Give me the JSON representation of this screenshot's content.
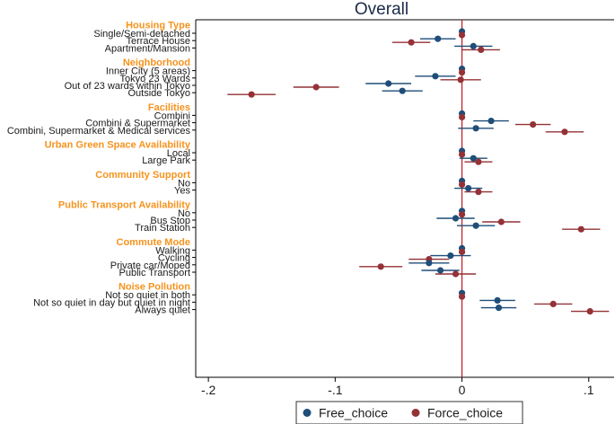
{
  "chart_data": {
    "type": "coefficient-plot",
    "title": "Overall",
    "xlim": [
      -0.21,
      0.12
    ],
    "xticks": [
      -0.2,
      -0.1,
      0,
      0.1
    ],
    "xtick_labels": [
      "-.2",
      "-.1",
      "0",
      ".1"
    ],
    "reference_line_x": 0,
    "series": [
      {
        "name": "Free_choice",
        "color": "#1f4e79"
      },
      {
        "name": "Force_choice",
        "color": "#943237"
      }
    ],
    "groups": [
      {
        "title": "Housing Type",
        "items": [
          {
            "label": "Single/Semi-detached",
            "free": [
              0,
              0,
              0
            ],
            "force": [
              0,
              0,
              0
            ]
          },
          {
            "label": "Terrace House",
            "free": [
              -0.019,
              -0.033,
              -0.005
            ],
            "force": [
              -0.04,
              -0.055,
              -0.025
            ]
          },
          {
            "label": "Apartment/Mansion",
            "free": [
              0.009,
              -0.006,
              0.024
            ],
            "force": [
              0.015,
              0.0,
              0.03
            ]
          }
        ]
      },
      {
        "title": "Neighborhood",
        "items": [
          {
            "label": "Inner City (5 areas)",
            "free": [
              0,
              0,
              0
            ],
            "force": [
              0,
              0,
              0
            ]
          },
          {
            "label": "Tokyo 23 Wards",
            "free": [
              -0.021,
              -0.037,
              -0.005
            ],
            "force": [
              -0.001,
              -0.017,
              0.015
            ]
          },
          {
            "label": "Out of 23 wards within Tokyo",
            "free": [
              -0.058,
              -0.076,
              -0.04
            ],
            "force": [
              -0.115,
              -0.133,
              -0.097
            ]
          },
          {
            "label": "Outside Tokyo",
            "free": [
              -0.047,
              -0.063,
              -0.031
            ],
            "force": [
              -0.166,
              -0.185,
              -0.147
            ]
          }
        ]
      },
      {
        "title": "Facilities",
        "items": [
          {
            "label": "Combini",
            "free": [
              0,
              0,
              0
            ],
            "force": [
              0,
              0,
              0
            ]
          },
          {
            "label": "Combini & Supermarket",
            "free": [
              0.023,
              0.009,
              0.037
            ],
            "force": [
              0.056,
              0.042,
              0.07
            ]
          },
          {
            "label": "Combini, Supermarket & Medical services",
            "free": [
              0.011,
              -0.003,
              0.025
            ],
            "force": [
              0.081,
              0.066,
              0.096
            ]
          }
        ]
      },
      {
        "title": "Urban Green Space Availability",
        "items": [
          {
            "label": "Local",
            "free": [
              0,
              0,
              0
            ],
            "force": [
              0,
              0,
              0
            ]
          },
          {
            "label": "Large Park",
            "free": [
              0.009,
              -0.002,
              0.02
            ],
            "force": [
              0.013,
              0.002,
              0.024
            ]
          }
        ]
      },
      {
        "title": "Community Support",
        "items": [
          {
            "label": "No",
            "free": [
              0,
              0,
              0
            ],
            "force": [
              0,
              0,
              0
            ]
          },
          {
            "label": "Yes",
            "free": [
              0.005,
              -0.006,
              0.016
            ],
            "force": [
              0.013,
              0.002,
              0.024
            ]
          }
        ]
      },
      {
        "title": "Public Transport Availability",
        "items": [
          {
            "label": "No",
            "free": [
              0,
              0,
              0
            ],
            "force": [
              0,
              0,
              0
            ]
          },
          {
            "label": "Bus Stop",
            "free": [
              -0.005,
              -0.02,
              0.01
            ],
            "force": [
              0.031,
              0.016,
              0.046
            ]
          },
          {
            "label": "Train Station",
            "free": [
              0.011,
              -0.004,
              0.026
            ],
            "force": [
              0.094,
              0.079,
              0.109
            ]
          }
        ]
      },
      {
        "title": "Commute Mode",
        "items": [
          {
            "label": "Walking",
            "free": [
              0,
              0,
              0
            ],
            "force": [
              0,
              0,
              0
            ]
          },
          {
            "label": "Cycling",
            "free": [
              -0.009,
              -0.025,
              0.007
            ],
            "force": [
              -0.026,
              -0.042,
              -0.01
            ]
          },
          {
            "label": "Private car/Moped",
            "free": [
              -0.026,
              -0.042,
              -0.01
            ],
            "force": [
              -0.064,
              -0.081,
              -0.047
            ]
          },
          {
            "label": "Public Transport",
            "free": [
              -0.017,
              -0.032,
              -0.002
            ],
            "force": [
              -0.005,
              -0.021,
              0.011
            ]
          }
        ]
      },
      {
        "title": "Noise Pollution",
        "items": [
          {
            "label": "Not so quiet in both",
            "free": [
              0,
              0,
              0
            ],
            "force": [
              0,
              0,
              0
            ]
          },
          {
            "label": "Not so quiet in day but quiet in night",
            "free": [
              0.028,
              0.014,
              0.042
            ],
            "force": [
              0.072,
              0.057,
              0.087
            ]
          },
          {
            "label": "Always quiet",
            "free": [
              0.029,
              0.015,
              0.043
            ],
            "force": [
              0.101,
              0.086,
              0.116
            ]
          }
        ]
      }
    ]
  }
}
